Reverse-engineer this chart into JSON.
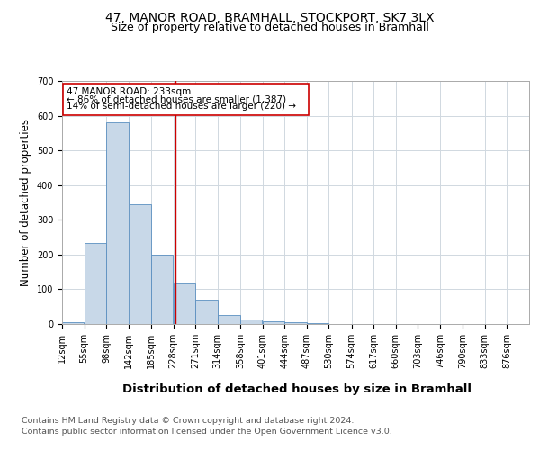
{
  "title1": "47, MANOR ROAD, BRAMHALL, STOCKPORT, SK7 3LX",
  "title2": "Size of property relative to detached houses in Bramhall",
  "xlabel": "Distribution of detached houses by size in Bramhall",
  "ylabel": "Number of detached properties",
  "footnote1": "Contains HM Land Registry data © Crown copyright and database right 2024.",
  "footnote2": "Contains public sector information licensed under the Open Government Licence v3.0.",
  "annotation_line1": "47 MANOR ROAD: 233sqm",
  "annotation_line2": "← 86% of detached houses are smaller (1,387)",
  "annotation_line3": "14% of semi-detached houses are larger (220) →",
  "bar_left_edges": [
    12,
    55,
    98,
    142,
    185,
    228,
    271,
    314,
    358,
    401,
    444,
    487,
    530,
    574,
    617,
    660,
    703,
    746,
    790,
    833
  ],
  "bar_widths": [
    43,
    43,
    44,
    43,
    43,
    43,
    43,
    44,
    43,
    43,
    43,
    43,
    44,
    43,
    43,
    43,
    43,
    44,
    43,
    43
  ],
  "bar_heights": [
    5,
    233,
    580,
    345,
    200,
    118,
    70,
    25,
    14,
    8,
    5,
    3,
    0,
    0,
    0,
    0,
    0,
    0,
    0,
    0
  ],
  "tick_labels": [
    "12sqm",
    "55sqm",
    "98sqm",
    "142sqm",
    "185sqm",
    "228sqm",
    "271sqm",
    "314sqm",
    "358sqm",
    "401sqm",
    "444sqm",
    "487sqm",
    "530sqm",
    "574sqm",
    "617sqm",
    "660sqm",
    "703sqm",
    "746sqm",
    "790sqm",
    "833sqm",
    "876sqm"
  ],
  "bar_color": "#c8d8e8",
  "bar_edge_color": "#5a8fc0",
  "marker_x": 233,
  "marker_color": "#cc0000",
  "ylim": [
    0,
    700
  ],
  "yticks": [
    0,
    100,
    200,
    300,
    400,
    500,
    600,
    700
  ],
  "grid_color": "#d0d8e0",
  "annotation_box_color": "#cc0000",
  "title1_fontsize": 10,
  "title2_fontsize": 9,
  "xlabel_fontsize": 9.5,
  "ylabel_fontsize": 8.5,
  "tick_fontsize": 7,
  "annotation_fontsize": 7.5,
  "footnote_fontsize": 6.8,
  "xlim_left": 12,
  "xlim_right": 919
}
